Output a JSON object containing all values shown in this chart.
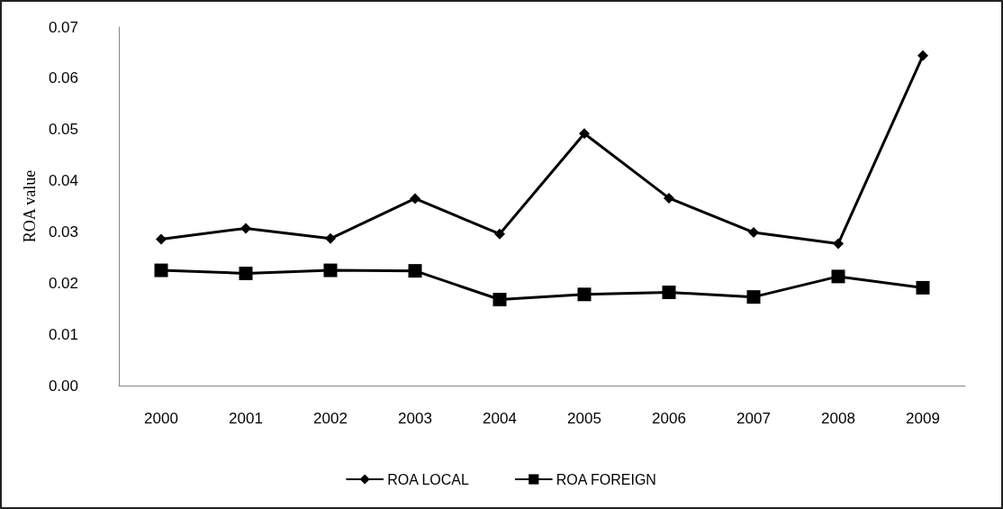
{
  "chart_data": {
    "type": "line",
    "ylabel": "ROA value",
    "categories": [
      "2000",
      "2001",
      "2002",
      "2003",
      "2004",
      "2005",
      "2006",
      "2007",
      "2008",
      "2009"
    ],
    "series": [
      {
        "name": "ROA LOCAL",
        "color": "#000000",
        "marker": "diamond",
        "values": [
          0.0286,
          0.0307,
          0.0287,
          0.0365,
          0.0296,
          0.0492,
          0.0366,
          0.0299,
          0.0277,
          0.0644
        ]
      },
      {
        "name": "ROA FOREIGN",
        "color": "#000000",
        "marker": "square",
        "values": [
          0.0225,
          0.0219,
          0.0225,
          0.0224,
          0.0168,
          0.0178,
          0.0182,
          0.0173,
          0.0213,
          0.0191
        ]
      }
    ],
    "ylim": [
      0,
      0.07
    ],
    "yticks": [
      {
        "value": 0,
        "label": "0.00"
      },
      {
        "value": 0.01,
        "label": "0.01"
      },
      {
        "value": 0.02,
        "label": "0.02"
      },
      {
        "value": 0.03,
        "label": "0.03"
      },
      {
        "value": 0.04,
        "label": "0.04"
      },
      {
        "value": 0.05,
        "label": "0.05"
      },
      {
        "value": 0.06,
        "label": "0.06"
      },
      {
        "value": 0.07,
        "label": "0.07"
      }
    ],
    "grid": false,
    "legend": "bottom",
    "line_style": "solid"
  }
}
